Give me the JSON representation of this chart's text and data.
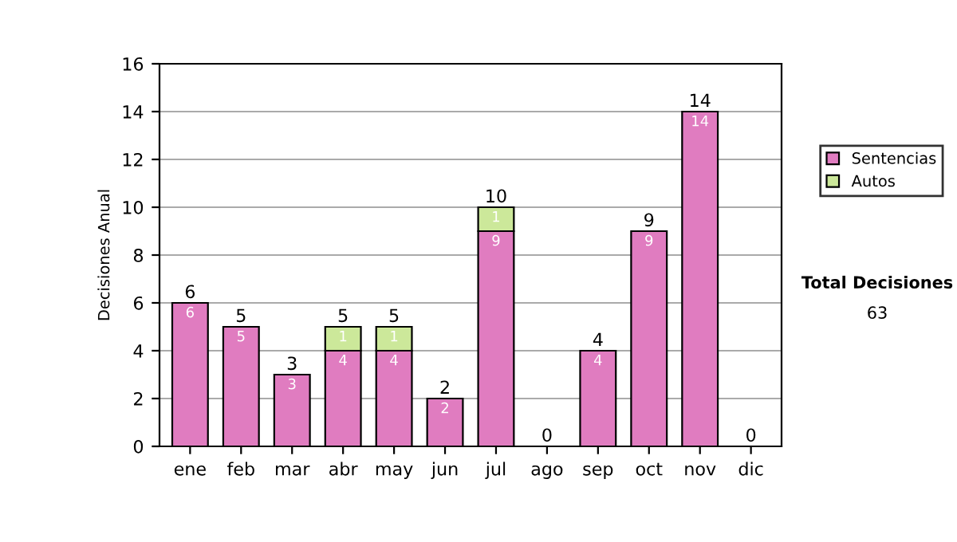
{
  "chart_data": {
    "type": "bar",
    "stacked": true,
    "ylabel": "Decisiones Anual",
    "categories": [
      "ene",
      "feb",
      "mar",
      "abr",
      "may",
      "jun",
      "jul",
      "ago",
      "sep",
      "oct",
      "nov",
      "dic"
    ],
    "series": [
      {
        "name": "Sentencias",
        "color": "#e07cc0",
        "values": [
          6,
          5,
          3,
          4,
          4,
          2,
          9,
          0,
          4,
          9,
          14,
          0
        ],
        "value_labels": [
          "6",
          "5",
          "3",
          "4",
          "4",
          "2",
          "9",
          null,
          "4",
          "9",
          "14",
          null
        ]
      },
      {
        "name": "Autos",
        "color": "#cce89a",
        "values": [
          0,
          0,
          0,
          1,
          1,
          0,
          1,
          0,
          0,
          0,
          0,
          0
        ],
        "value_labels": [
          null,
          null,
          null,
          "1",
          "1",
          null,
          "1",
          null,
          null,
          null,
          null,
          null
        ]
      }
    ],
    "totals": [
      "6",
      "5",
      "3",
      "5",
      "5",
      "2",
      "10",
      "0",
      "4",
      "9",
      "14",
      "0"
    ],
    "ylim": [
      0,
      16
    ],
    "yticks": [
      0,
      2,
      4,
      6,
      8,
      10,
      12,
      14,
      16
    ],
    "grid": "y",
    "legend": "right",
    "annotations": [
      "Total Decisiones",
      "63"
    ]
  }
}
